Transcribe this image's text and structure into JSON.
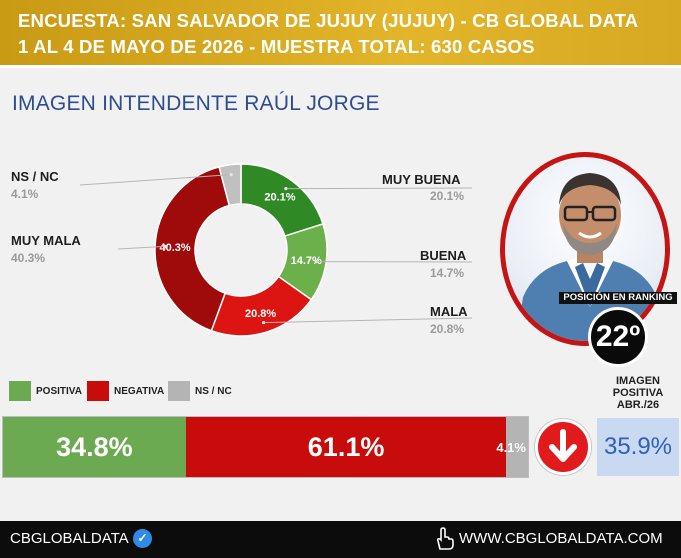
{
  "header": {
    "line1": "ENCUESTA: SAN SALVADOR DE JUJUY (JUJUY) - CB GLOBAL DATA",
    "line2": "1 AL 4 DE MAYO DE 2026 - MUESTRA TOTAL: 630 CASOS"
  },
  "title": "IMAGEN INTENDENTE  RAÚL JORGE",
  "chart_data": [
    {
      "type": "pie",
      "title": "",
      "slices": [
        {
          "name": "MUY BUENA",
          "value": 20.1,
          "label": "20.1%",
          "color": "#2f8a26"
        },
        {
          "name": "BUENA",
          "value": 14.7,
          "label": "14.7%",
          "color": "#6cb04c"
        },
        {
          "name": "MALA",
          "value": 20.8,
          "label": "20.8%",
          "color": "#dd1512"
        },
        {
          "name": "MUY MALA",
          "value": 40.3,
          "label": "40.3%",
          "color": "#9f0a0a"
        },
        {
          "name": "NS / NC",
          "value": 4.1,
          "label": "4.1%",
          "color": "#c0c0c0"
        }
      ]
    },
    {
      "type": "bar",
      "stacked": true,
      "orientation": "horizontal",
      "series": [
        {
          "name": "POSITIVA",
          "value": 34.8,
          "label": "34.8%",
          "color": "#6caa52"
        },
        {
          "name": "NEGATIVA",
          "value": 61.1,
          "label": "61.1%",
          "color": "#c80b0b"
        },
        {
          "name": "NS / NC",
          "value": 4.1,
          "label": "4.1%",
          "color": "#b4b4b4"
        }
      ]
    }
  ],
  "side_labels": {
    "muy_buena": {
      "name": "MUY BUENA",
      "pct": "20.1%"
    },
    "buena": {
      "name": "BUENA",
      "pct": "14.7%"
    },
    "mala": {
      "name": "MALA",
      "pct": "20.8%"
    },
    "muy_mala": {
      "name": "MUY MALA",
      "pct": "40.3%"
    },
    "nsnc": {
      "name": "NS / NC",
      "pct": "4.1%"
    }
  },
  "legend": [
    {
      "label": "POSITIVA",
      "color": "#6caa52"
    },
    {
      "label": "NEGATIVA",
      "color": "#c80b0b"
    },
    {
      "label": "NS / NC",
      "color": "#b4b4b4"
    }
  ],
  "ranking": {
    "label": "POSICIÓN EN RANKING",
    "value": "22º"
  },
  "trend_icon": "arrow-down-icon",
  "previous_image": {
    "heading_line1": "IMAGEN",
    "heading_line2": "POSITIVA",
    "heading_line3": "ABR./26",
    "value": "35.9%"
  },
  "footer": {
    "brand": "CBGLOBALDATA",
    "url": "WWW.CBGLOBALDATA.COM"
  }
}
